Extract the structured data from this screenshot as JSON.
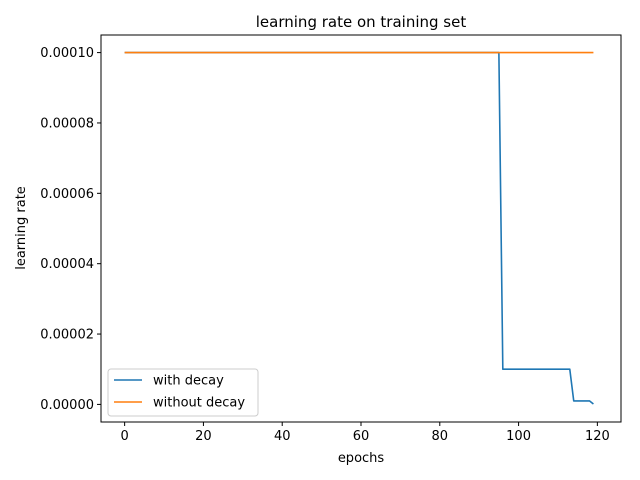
{
  "chart_data": {
    "type": "line",
    "title": "learning rate on training set",
    "xlabel": "epochs",
    "ylabel": "learning rate",
    "xlim": [
      -6,
      126
    ],
    "ylim": [
      -5e-06,
      0.000105
    ],
    "xticks": [
      0,
      20,
      40,
      60,
      80,
      100,
      120
    ],
    "xtick_labels": [
      "0",
      "20",
      "40",
      "60",
      "80",
      "100",
      "120"
    ],
    "yticks": [
      0,
      2e-05,
      4e-05,
      6e-05,
      8e-05,
      0.0001
    ],
    "ytick_labels": [
      "0.00000",
      "0.00002",
      "0.00004",
      "0.00006",
      "0.00008",
      "0.00010"
    ],
    "grid": false,
    "legend_position": "lower-left",
    "series": [
      {
        "name": "with decay",
        "color": "#1f77b4",
        "x": [
          0,
          95,
          96,
          113,
          114,
          118,
          119
        ],
        "y": [
          0.0001,
          0.0001,
          1e-05,
          1e-05,
          1e-06,
          1e-06,
          1e-07
        ]
      },
      {
        "name": "without decay",
        "color": "#ff7f0e",
        "x": [
          0,
          119
        ],
        "y": [
          0.0001,
          0.0001
        ]
      }
    ]
  }
}
